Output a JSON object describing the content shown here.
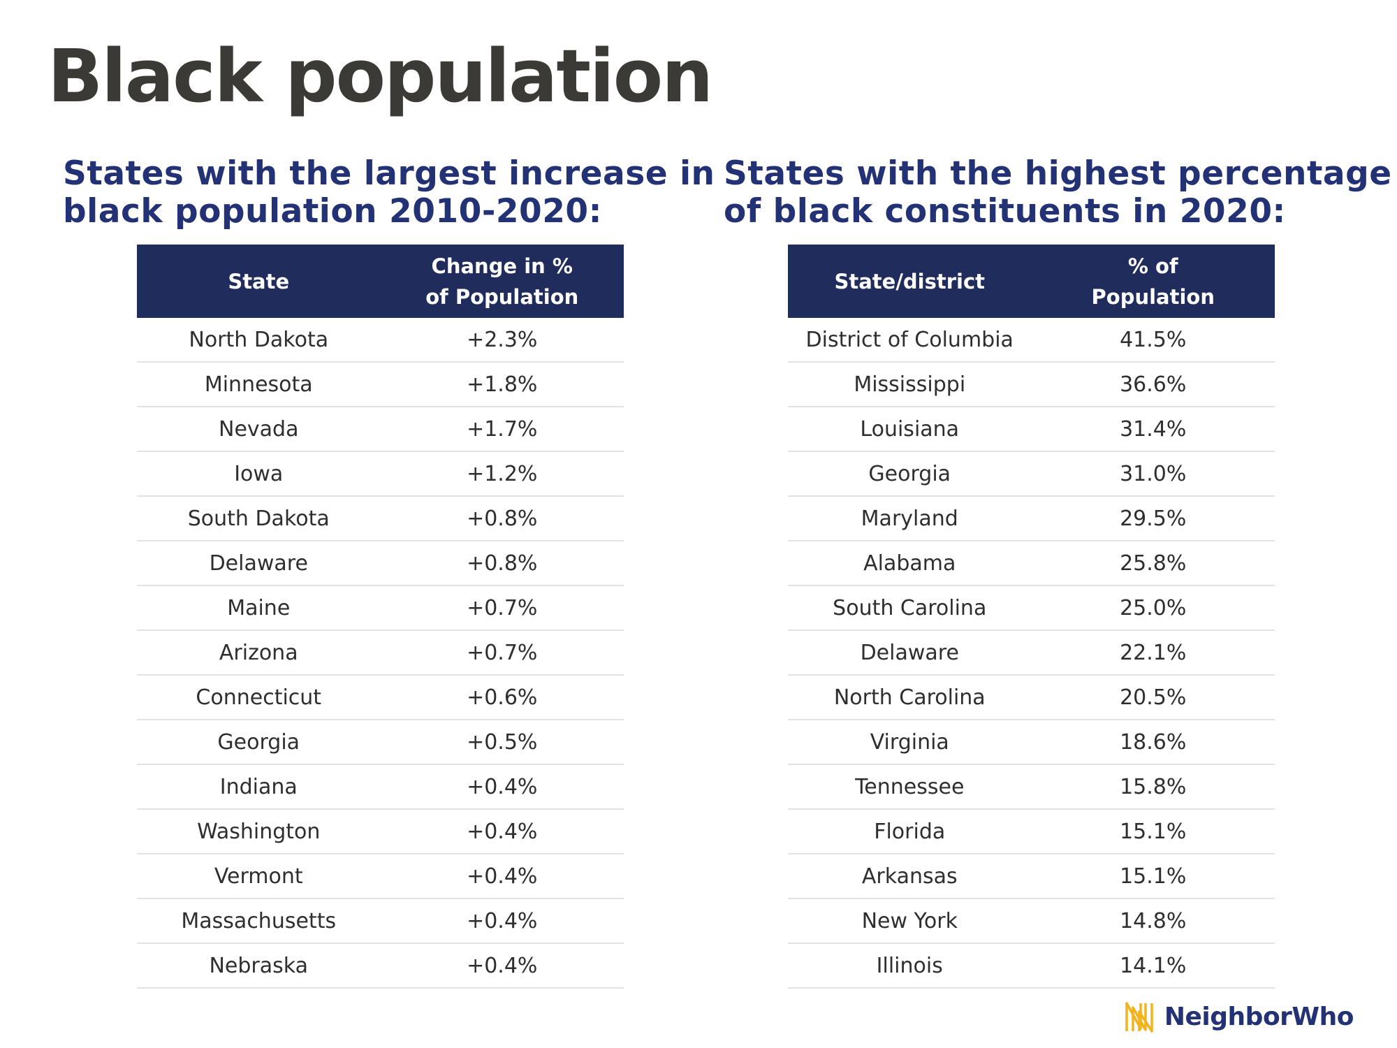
{
  "page": {
    "title": "Black population"
  },
  "left_section": {
    "heading_line1": "States with the largest increase in",
    "heading_line2": "black population 2010-2020:",
    "headers": {
      "col1": "State",
      "col2_line1": "Change in %",
      "col2_line2": "of Population"
    },
    "rows": [
      {
        "state": "North Dakota",
        "value": "+2.3%"
      },
      {
        "state": "Minnesota",
        "value": "+1.8%"
      },
      {
        "state": "Nevada",
        "value": "+1.7%"
      },
      {
        "state": "Iowa",
        "value": "+1.2%"
      },
      {
        "state": "South Dakota",
        "value": "+0.8%"
      },
      {
        "state": "Delaware",
        "value": "+0.8%"
      },
      {
        "state": "Maine",
        "value": "+0.7%"
      },
      {
        "state": "Arizona",
        "value": "+0.7%"
      },
      {
        "state": "Connecticut",
        "value": "+0.6%"
      },
      {
        "state": "Georgia",
        "value": "+0.5%"
      },
      {
        "state": "Indiana",
        "value": "+0.4%"
      },
      {
        "state": "Washington",
        "value": "+0.4%"
      },
      {
        "state": "Vermont",
        "value": "+0.4%"
      },
      {
        "state": "Massachusetts",
        "value": "+0.4%"
      },
      {
        "state": "Nebraska",
        "value": "+0.4%"
      }
    ]
  },
  "right_section": {
    "heading_line1": "States with the highest percentage",
    "heading_line2": "of black constituents in 2020:",
    "headers": {
      "col1": "State/district",
      "col2_line1": "% of",
      "col2_line2": "Population"
    },
    "rows": [
      {
        "state": "District of Columbia",
        "value": "41.5%"
      },
      {
        "state": "Mississippi",
        "value": "36.6%"
      },
      {
        "state": "Louisiana",
        "value": "31.4%"
      },
      {
        "state": "Georgia",
        "value": "31.0%"
      },
      {
        "state": "Maryland",
        "value": "29.5%"
      },
      {
        "state": "Alabama",
        "value": "25.8%"
      },
      {
        "state": "South Carolina",
        "value": "25.0%"
      },
      {
        "state": "Delaware",
        "value": "22.1%"
      },
      {
        "state": "North Carolina",
        "value": "20.5%"
      },
      {
        "state": "Virginia",
        "value": "18.6%"
      },
      {
        "state": "Tennessee",
        "value": "15.8%"
      },
      {
        "state": "Florida",
        "value": "15.1%"
      },
      {
        "state": "Arkansas",
        "value": "15.1%"
      },
      {
        "state": "New York",
        "value": "14.8%"
      },
      {
        "state": "Illinois",
        "value": "14.1%"
      }
    ]
  },
  "brand": {
    "name": "NeighborWho",
    "icon": "neighborwho-logo-icon"
  },
  "colors": {
    "title": "#3b3a36",
    "heading": "#233175",
    "header_bg": "#1f2c5c",
    "header_text": "#ffffff",
    "row_divider": "#e3e3e3",
    "logo_gold": "#f2b41c"
  }
}
